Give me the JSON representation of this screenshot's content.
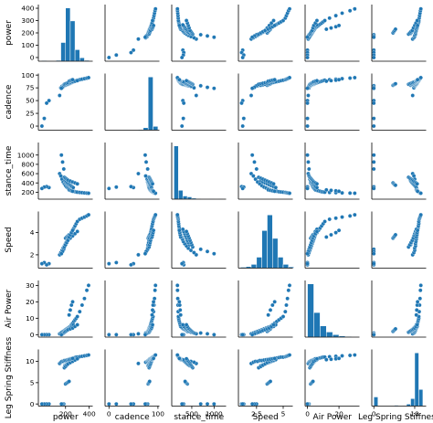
{
  "chart_data": {
    "type": "scatter",
    "variables": [
      "power",
      "cadence",
      "stance_time",
      "Speed",
      "Air Power",
      "Leg Spring Stiffness"
    ],
    "axes": [
      {
        "name": "power",
        "range": [
          -30,
          430
        ],
        "ticks": [
          0,
          100,
          200,
          300,
          400
        ],
        "xticks": [
          200,
          400
        ]
      },
      {
        "name": "cadence",
        "range": [
          -8,
          103
        ],
        "ticks": [
          0,
          25,
          50,
          75,
          100
        ],
        "xticks": [
          0,
          100
        ]
      },
      {
        "name": "stance_time",
        "range": [
          50,
          1270
        ],
        "ticks": [
          200,
          400,
          600,
          800,
          1000
        ],
        "xticks": [
          500,
          1000
        ]
      },
      {
        "name": "Speed",
        "range": [
          0.8,
          5.9
        ],
        "ticks": [
          2,
          4
        ],
        "xticks": [
          2.5,
          5.0
        ]
      },
      {
        "name": "Air Power",
        "range": [
          -1.5,
          33
        ],
        "ticks": [
          0,
          10,
          20,
          30
        ],
        "xticks": [
          0,
          20
        ]
      },
      {
        "name": "Leg Spring Stiffness",
        "range": [
          -0.5,
          12.8
        ],
        "ticks": [
          0,
          5,
          10
        ],
        "xticks": [
          0,
          10
        ]
      }
    ],
    "histograms": [
      {
        "variable": "power",
        "bins": [
          0,
          40,
          80,
          120,
          160,
          200,
          240,
          280,
          320,
          360,
          400
        ],
        "counts": [
          2,
          0,
          0,
          3,
          65,
          185,
          140,
          40,
          12,
          3
        ]
      },
      {
        "variable": "cadence",
        "bins": [
          0,
          10,
          20,
          30,
          40,
          50,
          60,
          70,
          80,
          90,
          100
        ],
        "counts": [
          2,
          0,
          0,
          0,
          2,
          3,
          5,
          20,
          420,
          30
        ]
      },
      {
        "variable": "stance_time",
        "bins": [
          100,
          200,
          300,
          400,
          500,
          600,
          700,
          800,
          900,
          1000,
          1100,
          1200
        ],
        "counts": [
          420,
          70,
          25,
          18,
          8,
          4,
          3,
          2,
          1,
          0,
          1
        ]
      },
      {
        "variable": "Speed",
        "bins": [
          1.0,
          1.5,
          2.0,
          2.5,
          3.0,
          3.5,
          4.0,
          4.5,
          5.0,
          5.5,
          6.0
        ],
        "counts": [
          3,
          5,
          12,
          35,
          120,
          170,
          95,
          35,
          12,
          4
        ]
      },
      {
        "variable": "Air Power",
        "bins": [
          0,
          4,
          8,
          12,
          16,
          20,
          24,
          28,
          32
        ],
        "counts": [
          260,
          120,
          55,
          25,
          12,
          6,
          3,
          2
        ]
      },
      {
        "variable": "Leg Spring Stiffness",
        "bins": [
          0,
          1,
          2,
          3,
          4,
          5,
          6,
          7,
          8,
          9,
          10,
          11,
          12
        ],
        "counts": [
          55,
          0,
          0,
          0,
          2,
          5,
          1,
          3,
          12,
          45,
          320,
          100
        ]
      }
    ],
    "points": [
      [
        150,
        60,
        600,
        2.0,
        0.5,
        9.5
      ],
      [
        160,
        75,
        550,
        2.2,
        1.0,
        9.8
      ],
      [
        170,
        78,
        480,
        2.4,
        1.5,
        10.0
      ],
      [
        180,
        79,
        420,
        2.6,
        2.0,
        10.0
      ],
      [
        190,
        80,
        380,
        2.8,
        2.5,
        10.2
      ],
      [
        200,
        81,
        340,
        3.0,
        3.0,
        10.2
      ],
      [
        210,
        82,
        310,
        3.2,
        3.5,
        10.3
      ],
      [
        220,
        82,
        290,
        3.4,
        4.0,
        10.4
      ],
      [
        230,
        83,
        270,
        3.6,
        4.5,
        10.5
      ],
      [
        240,
        84,
        250,
        3.8,
        5.0,
        10.6
      ],
      [
        250,
        85,
        240,
        4.0,
        6.0,
        10.6
      ],
      [
        260,
        86,
        230,
        4.2,
        7.0,
        10.7
      ],
      [
        270,
        87,
        220,
        4.4,
        8.0,
        10.8
      ],
      [
        280,
        88,
        210,
        4.6,
        9.0,
        10.9
      ],
      [
        290,
        89,
        205,
        4.8,
        10.0,
        11.0
      ],
      [
        300,
        90,
        200,
        5.0,
        11.0,
        11.0
      ],
      [
        320,
        91,
        195,
        5.2,
        14.0,
        11.1
      ],
      [
        340,
        92,
        190,
        5.3,
        18.0,
        11.2
      ],
      [
        360,
        93,
        185,
        5.4,
        22.0,
        11.3
      ],
      [
        380,
        94,
        180,
        5.5,
        27.0,
        11.4
      ],
      [
        395,
        95,
        178,
        5.6,
        30.0,
        11.5
      ],
      [
        185,
        79,
        700,
        2.5,
        1.0,
        0
      ],
      [
        175,
        76,
        850,
        2.3,
        0.5,
        0
      ],
      [
        165,
        74,
        1000,
        2.1,
        0,
        0
      ],
      [
        60,
        50,
        300,
        1.2,
        0,
        0
      ],
      [
        40,
        45,
        320,
        1.1,
        0,
        0
      ],
      [
        20,
        15,
        310,
        1.3,
        0,
        0
      ],
      [
        0,
        0,
        280,
        1.2,
        0,
        0
      ],
      [
        200,
        80,
        400,
        3.5,
        2.0,
        4.7
      ],
      [
        210,
        81,
        380,
        3.6,
        2.5,
        4.9
      ],
      [
        220,
        82,
        360,
        3.7,
        3.0,
        5.1
      ],
      [
        230,
        83,
        350,
        3.8,
        3.5,
        5.3
      ],
      [
        195,
        80,
        450,
        2.9,
        2.0,
        9.0
      ],
      [
        205,
        81,
        420,
        3.1,
        2.5,
        9.2
      ],
      [
        215,
        82,
        400,
        3.3,
        3.0,
        9.4
      ],
      [
        225,
        83,
        380,
        3.5,
        3.5,
        9.6
      ],
      [
        235,
        84,
        360,
        3.7,
        4.0,
        9.8
      ],
      [
        245,
        85,
        340,
        3.9,
        4.5,
        10.0
      ],
      [
        255,
        86,
        320,
        4.1,
        5.0,
        10.2
      ],
      [
        265,
        87,
        300,
        4.3,
        6.0,
        10.4
      ],
      [
        190,
        82,
        520,
        2.7,
        1.5,
        8.5
      ],
      [
        200,
        83,
        500,
        2.9,
        2.0,
        8.8
      ],
      [
        210,
        84,
        480,
        3.1,
        2.5,
        9.1
      ],
      [
        220,
        85,
        460,
        3.3,
        3.0,
        9.4
      ],
      [
        240,
        86,
        440,
        3.5,
        3.5,
        9.7
      ],
      [
        260,
        87,
        420,
        3.7,
        4.0,
        10.0
      ],
      [
        280,
        88,
        400,
        3.9,
        5.0,
        10.3
      ],
      [
        300,
        89,
        380,
        4.1,
        6.0,
        10.6
      ],
      [
        230,
        88,
        250,
        3.6,
        12.0,
        10.4
      ],
      [
        240,
        89,
        240,
        3.8,
        15.0,
        10.5
      ],
      [
        250,
        90,
        230,
        4.0,
        18.0,
        10.6
      ],
      [
        260,
        91,
        220,
        4.2,
        20.0,
        10.7
      ]
    ]
  }
}
